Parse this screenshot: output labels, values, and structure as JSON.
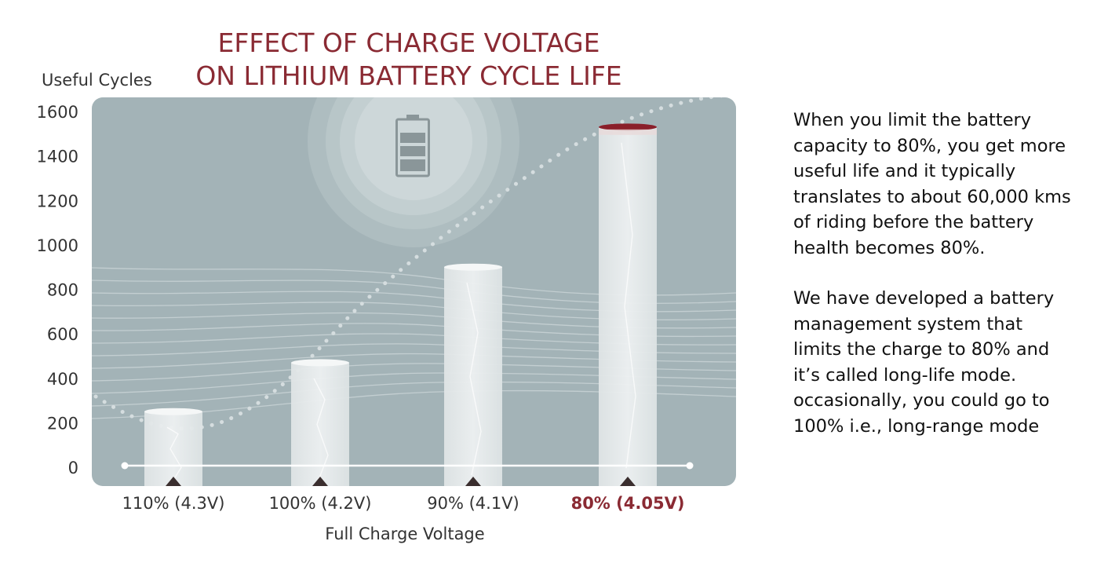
{
  "chart_data": {
    "type": "bar",
    "title": [
      "EFFECT OF CHARGE VOLTAGE",
      "ON LITHIUM BATTERY CYCLE LIFE"
    ],
    "ylabel": "Useful Cycles",
    "xlabel": "Full Charge Voltage",
    "categories": [
      "110% (4.3V)",
      "100% (4.2V)",
      "90% (4.1V)",
      "80% (4.05V)"
    ],
    "values": [
      250,
      470,
      900,
      1530
    ],
    "highlight_category": "80% (4.05V)",
    "ylim": [
      0,
      1600
    ],
    "yticks": [
      0,
      200,
      400,
      600,
      800,
      1000,
      1200,
      1400,
      1600
    ],
    "colors": {
      "panel": "#a3b3b7",
      "bar": "#e6eaeb",
      "title": "#8a2a33",
      "highlight_cap": "#8a1f2a"
    }
  },
  "side_text": {
    "paragraph_1": "When you limit the battery\ncapacity to 80%, you get more\nuseful life and it typically\ntranslates to about 60,000 kms\nof riding before the battery\nhealth becomes 80%.",
    "paragraph_2": "We have developed a battery\nmanagement system that\nlimits the charge to 80% and\nit’s called long-life mode.\noccasionally, you could go to\n100% i.e., long-range mode"
  },
  "icons": {
    "panel_icon": "battery-icon"
  }
}
